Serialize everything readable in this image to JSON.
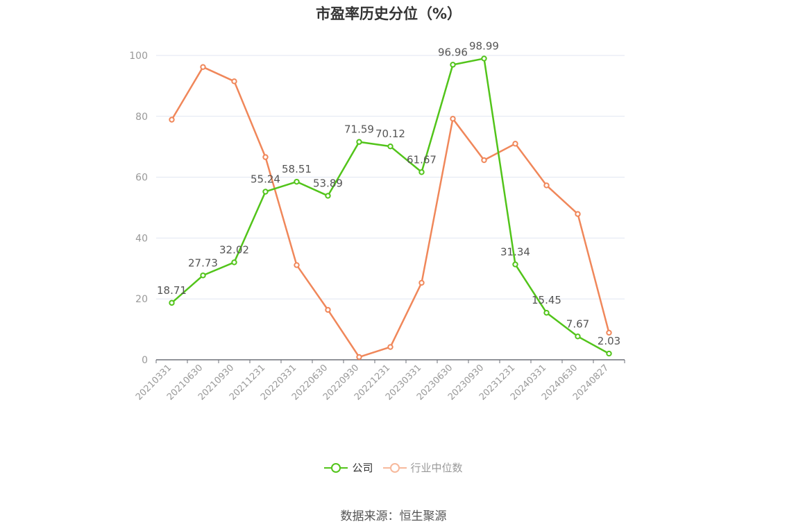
{
  "chart_data": {
    "type": "line",
    "title": "市盈率历史分位（%）",
    "categories": [
      "20210331",
      "20210630",
      "20210930",
      "20211231",
      "20220331",
      "20220630",
      "20220930",
      "20221231",
      "20230331",
      "20230630",
      "20230930",
      "20231231",
      "20240331",
      "20240630",
      "20240827"
    ],
    "series": [
      {
        "name": "公司",
        "color": "#52c41a",
        "values": [
          18.71,
          27.73,
          32.02,
          55.24,
          58.51,
          53.89,
          71.59,
          70.12,
          61.67,
          96.96,
          98.99,
          31.34,
          15.45,
          7.67,
          2.03
        ],
        "labels": [
          "18.71",
          "27.73",
          "32.02",
          "55.24",
          "58.51",
          "53.89",
          "71.59",
          "70.12",
          "61.67",
          "96.96",
          "98.99",
          "31.34",
          "15.45",
          "7.67",
          "2.03"
        ]
      },
      {
        "name": "行业中位数",
        "color": "#f0875a",
        "legend_color": "#f7b99c",
        "values": [
          78.9,
          96.2,
          91.5,
          66.6,
          31.1,
          16.4,
          0.9,
          4.2,
          25.3,
          79.2,
          65.6,
          71.0,
          57.3,
          47.9,
          8.9
        ]
      }
    ],
    "ylim": [
      0,
      100
    ],
    "yticks": [
      0,
      20,
      40,
      60,
      80,
      100
    ],
    "grid": true,
    "legend_position": "bottom"
  },
  "source_note": "数据来源：恒生聚源",
  "colors": {
    "axis": "#6e7079",
    "grid": "#e0e6f1",
    "tick_text": "#999999",
    "label_text": "#555555"
  }
}
